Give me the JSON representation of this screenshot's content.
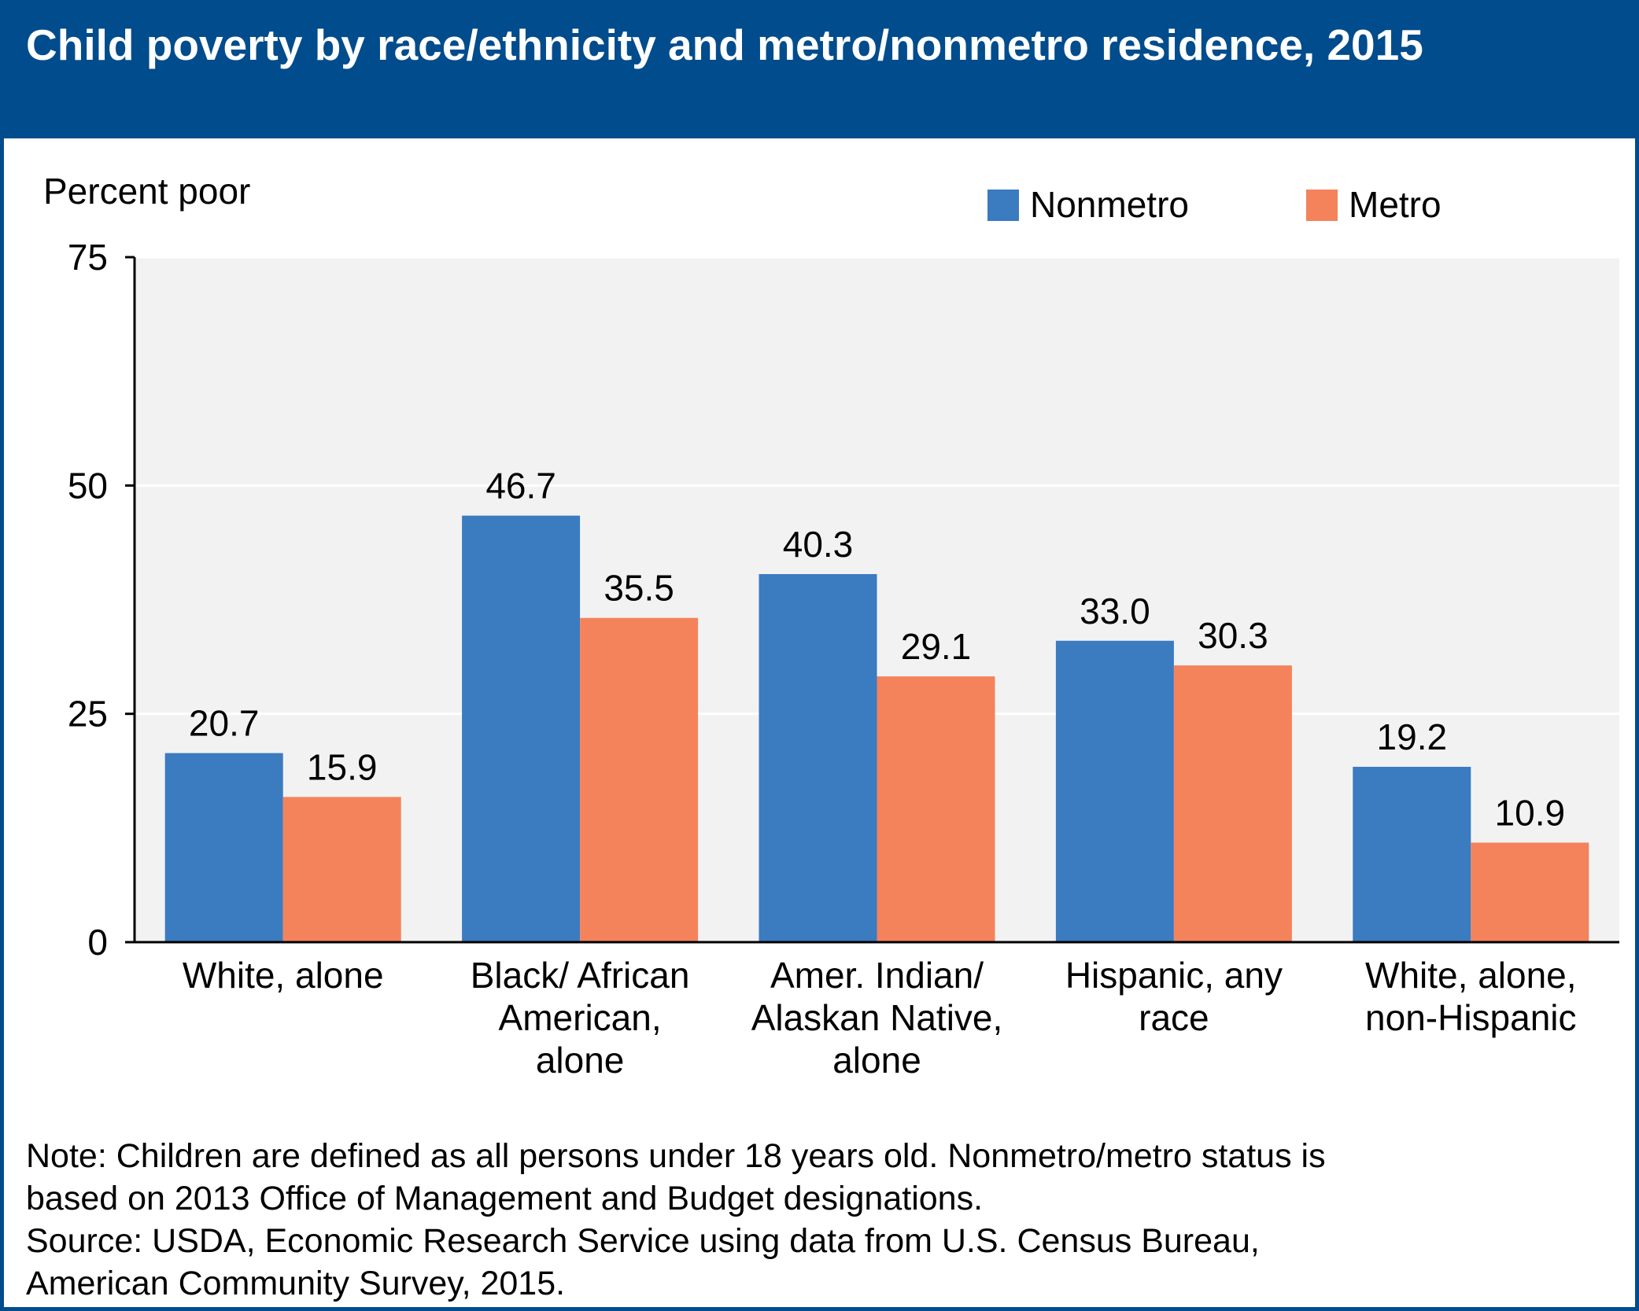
{
  "header": {
    "title": "Child poverty by race/ethnicity and metro/nonmetro residence, 2015"
  },
  "colors": {
    "header_bg": "#004C8C",
    "nonmetro": "#3B7BC0",
    "metro": "#F4835C",
    "plot_bg": "#F2F2F2"
  },
  "legend": {
    "nonmetro": "Nonmetro",
    "metro": "Metro",
    "placement": "top-right"
  },
  "chart_data": {
    "type": "bar",
    "title": "Child poverty by race/ethnicity and metro/nonmetro residence, 2015",
    "ylabel": "Percent poor",
    "xlabel": "",
    "ylim": [
      0,
      75
    ],
    "yticks": [
      0,
      25,
      50,
      75
    ],
    "grid": true,
    "categories": [
      [
        "White, alone"
      ],
      [
        "Black/ African",
        "American,",
        "alone"
      ],
      [
        "Amer. Indian/",
        "Alaskan Native,",
        "alone"
      ],
      [
        "Hispanic, any",
        "race"
      ],
      [
        "White, alone,",
        "non-Hispanic"
      ]
    ],
    "series": [
      {
        "name": "Nonmetro",
        "color": "#3B7BC0",
        "values": [
          20.7,
          46.7,
          40.3,
          33.0,
          19.2
        ],
        "labels": [
          "20.7",
          "46.7",
          "40.3",
          "33.0",
          "19.2"
        ]
      },
      {
        "name": "Metro",
        "color": "#F4835C",
        "values": [
          15.9,
          35.5,
          29.1,
          30.3,
          10.9
        ],
        "labels": [
          "15.9",
          "35.5",
          "29.1",
          "30.3",
          "10.9"
        ]
      }
    ]
  },
  "notes": {
    "line1": "Note: Children are defined as all persons under 18 years old. Nonmetro/metro status is",
    "line2": "based on 2013 Office of Management and Budget designations.",
    "line3": "Source: USDA, Economic Research Service using data from U.S. Census Bureau,",
    "line4": "American Community Survey, 2015."
  }
}
